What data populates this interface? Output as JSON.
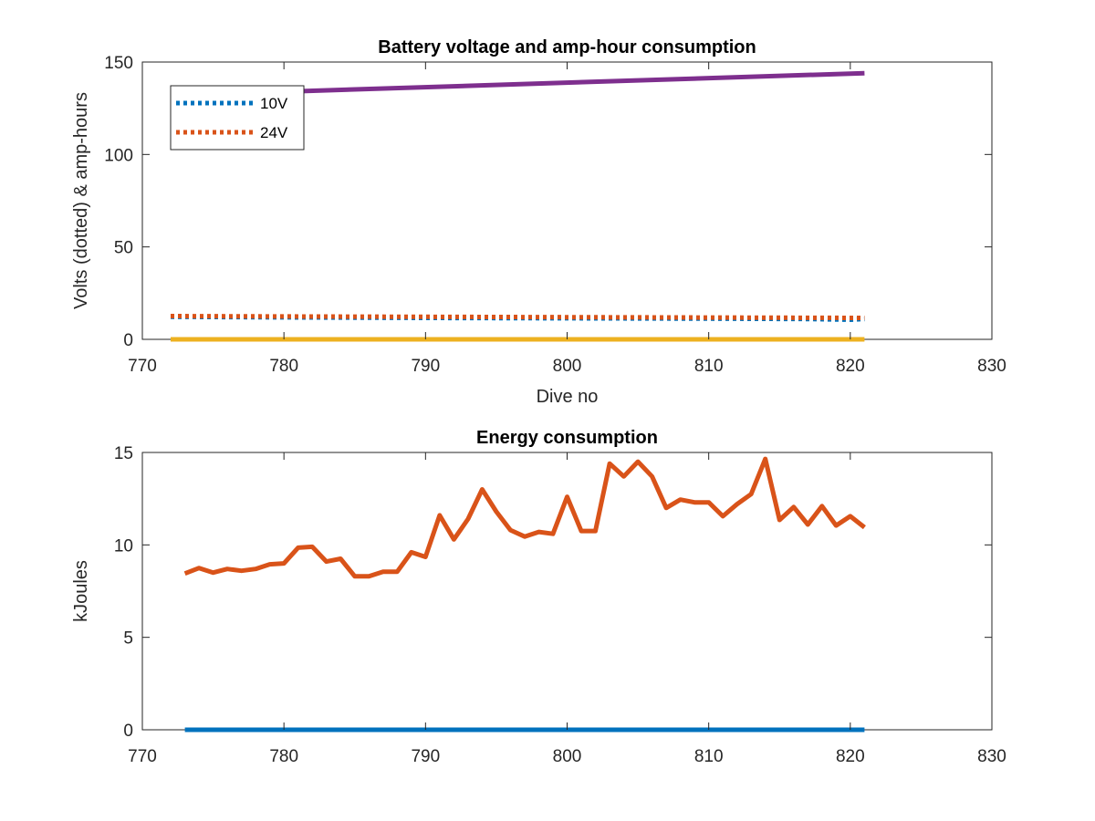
{
  "chart_data": [
    {
      "type": "line",
      "title": "Battery voltage and amp-hour consumption",
      "xlabel": "Dive no",
      "ylabel": "Volts (dotted) & amp-hours",
      "xlim": [
        770,
        830
      ],
      "ylim": [
        0,
        150
      ],
      "xticks": [
        770,
        780,
        790,
        800,
        810,
        820,
        830
      ],
      "yticks": [
        0,
        50,
        100,
        150
      ],
      "grid": false,
      "legend_position": "top-left",
      "series": [
        {
          "name": "10V",
          "style": "dotted",
          "color": "#0072BD",
          "x": [
            772,
            780,
            790,
            800,
            810,
            817,
            820,
            821
          ],
          "y": [
            12.2,
            11.9,
            11.6,
            11.4,
            11.2,
            11.0,
            10.6,
            11.0
          ]
        },
        {
          "name": "24V",
          "style": "dotted",
          "color": "#D95319",
          "x": [
            772,
            780,
            790,
            800,
            810,
            821
          ],
          "y": [
            12.6,
            12.4,
            12.2,
            12.0,
            11.8,
            11.6
          ]
        },
        {
          "style": "solid",
          "color": "#EDB120",
          "x": [
            772,
            821
          ],
          "y": [
            0,
            0
          ]
        },
        {
          "style": "solid",
          "color": "#7E2F8E",
          "x": [
            772,
            821
          ],
          "y": [
            132,
            144
          ]
        }
      ]
    },
    {
      "type": "line",
      "title": "Energy consumption",
      "xlabel": "",
      "ylabel": "kJoules",
      "xlim": [
        770,
        830
      ],
      "ylim": [
        0,
        15
      ],
      "xticks": [
        770,
        780,
        790,
        800,
        810,
        820,
        830
      ],
      "yticks": [
        0,
        5,
        10,
        15
      ],
      "grid": false,
      "series": [
        {
          "style": "solid",
          "color": "#0072BD",
          "x": [
            773,
            821
          ],
          "y": [
            0,
            0
          ]
        },
        {
          "style": "solid",
          "color": "#D95319",
          "x": [
            773,
            774,
            775,
            776,
            777,
            778,
            779,
            780,
            781,
            782,
            783,
            784,
            785,
            786,
            787,
            788,
            789,
            790,
            791,
            792,
            793,
            794,
            795,
            796,
            797,
            798,
            799,
            800,
            801,
            802,
            803,
            804,
            805,
            806,
            807,
            808,
            809,
            810,
            811,
            812,
            813,
            814,
            815,
            816,
            817,
            818,
            819,
            820,
            821
          ],
          "y": [
            8.45,
            8.75,
            8.5,
            8.7,
            8.6,
            8.7,
            8.95,
            9.0,
            9.85,
            9.9,
            9.1,
            9.25,
            8.3,
            8.3,
            8.55,
            8.55,
            9.6,
            9.35,
            11.6,
            10.3,
            11.4,
            13.0,
            11.8,
            10.8,
            10.45,
            10.7,
            10.6,
            12.6,
            10.75,
            10.75,
            14.4,
            13.7,
            14.5,
            13.7,
            12.0,
            12.45,
            12.3,
            12.3,
            11.55,
            12.2,
            12.75,
            14.65,
            11.35,
            12.05,
            11.1,
            12.1,
            11.05,
            11.55,
            10.95
          ]
        }
      ]
    }
  ]
}
